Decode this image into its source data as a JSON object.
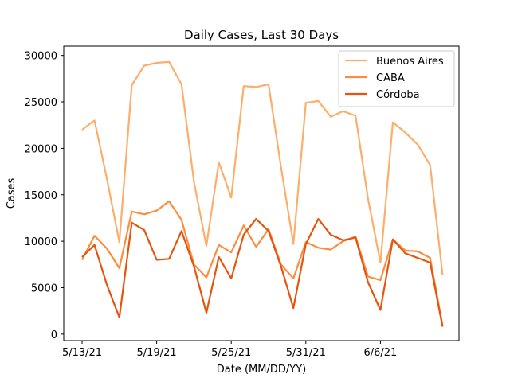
{
  "chart_data": {
    "type": "line",
    "title": "Daily Cases, Last 30 Days",
    "xlabel": "Date (MM/DD/YY)",
    "ylabel": "Cases",
    "x": [
      "5/13/21",
      "5/14/21",
      "5/15/21",
      "5/16/21",
      "5/17/21",
      "5/18/21",
      "5/19/21",
      "5/20/21",
      "5/21/21",
      "5/22/21",
      "5/23/21",
      "5/24/21",
      "5/25/21",
      "5/26/21",
      "5/27/21",
      "5/28/21",
      "5/29/21",
      "5/30/21",
      "5/31/21",
      "6/1/21",
      "6/2/21",
      "6/3/21",
      "6/4/21",
      "6/5/21",
      "6/6/21",
      "6/7/21",
      "6/8/21",
      "6/9/21",
      "6/10/21",
      "6/11/21"
    ],
    "xticks": [
      "5/13/21",
      "5/19/21",
      "5/25/21",
      "5/31/21",
      "6/6/21"
    ],
    "ylim": [
      -700,
      31000
    ],
    "yticks": [
      0,
      5000,
      10000,
      15000,
      20000,
      25000,
      30000
    ],
    "grid": false,
    "legend_position": "top-right",
    "series": [
      {
        "name": "Buenos Aires",
        "color": "#fdae6b",
        "values": [
          22000,
          23000,
          16700,
          9900,
          26800,
          28900,
          29200,
          29300,
          26900,
          16400,
          9500,
          18500,
          14700,
          26700,
          26600,
          26900,
          18000,
          9700,
          24900,
          25100,
          23400,
          24000,
          23500,
          14600,
          7700,
          22800,
          21700,
          20400,
          18200,
          6400
        ]
      },
      {
        "name": "CABA",
        "color": "#fd8d3c",
        "values": [
          8000,
          10600,
          9200,
          7100,
          13200,
          12900,
          13300,
          14300,
          12300,
          7500,
          6100,
          9600,
          8800,
          11700,
          9400,
          11300,
          7500,
          6000,
          9900,
          9300,
          9100,
          10000,
          10500,
          6200,
          5800,
          10200,
          9000,
          8900,
          8200,
          900
        ]
      },
      {
        "name": "Córdoba",
        "color": "#e6550d",
        "values": [
          8300,
          9600,
          5300,
          1800,
          12000,
          11200,
          8000,
          8100,
          11100,
          7300,
          2300,
          8300,
          6000,
          10700,
          12400,
          11100,
          7300,
          2800,
          9700,
          12400,
          10700,
          10100,
          10400,
          5600,
          2600,
          10200,
          8700,
          8200,
          7700,
          800
        ]
      }
    ]
  }
}
